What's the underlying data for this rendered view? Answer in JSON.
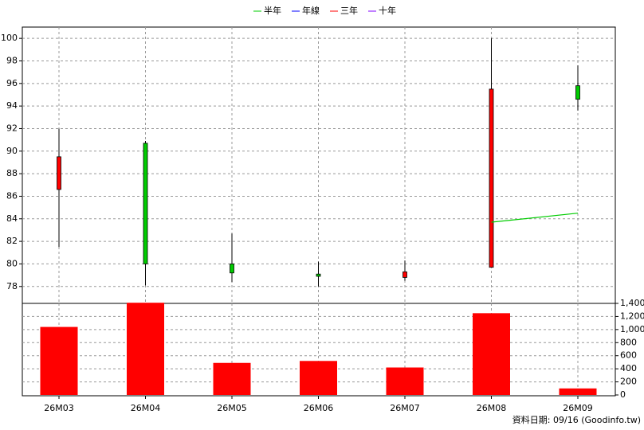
{
  "chart_data": [
    {
      "type": "candlestick",
      "open": [
        86.6,
        90.7,
        80.0,
        79.1,
        78.8,
        79.7,
        95.8
      ],
      "high": [
        92.0,
        90.9,
        82.7,
        80.2,
        80.3,
        100.0,
        97.6
      ],
      "low": [
        81.5,
        78.1,
        78.4,
        78.0,
        78.5,
        79.7,
        93.6
      ],
      "close": [
        89.5,
        80.0,
        79.2,
        78.9,
        79.3,
        95.5,
        94.6
      ],
      "up_color": "#ff0000",
      "down_color": "#00cc00",
      "series": [
        {
          "name": "半年",
          "color": "#00cc00",
          "values": [
            null,
            null,
            null,
            null,
            null,
            83.7,
            84.5
          ]
        },
        {
          "name": "年線",
          "color": "#0000ff",
          "values": [
            null,
            null,
            null,
            null,
            null,
            null,
            null
          ]
        },
        {
          "name": "三年",
          "color": "#ff0000",
          "values": [
            null,
            null,
            null,
            null,
            null,
            null,
            null
          ]
        },
        {
          "name": "十年",
          "color": "#8000ff",
          "values": [
            null,
            null,
            null,
            null,
            null,
            null,
            null
          ]
        }
      ],
      "ylim": [
        76.5,
        101
      ],
      "yticks": [
        78,
        80,
        82,
        84,
        86,
        88,
        90,
        92,
        94,
        96,
        98,
        100
      ],
      "grid": true
    },
    {
      "type": "bar",
      "categories": [
        "26M03",
        "26M04",
        "26M05",
        "26M06",
        "26M07",
        "26M08",
        "26M09"
      ],
      "values": [
        1040,
        1410,
        490,
        520,
        420,
        1250,
        100
      ],
      "color": "#ff0000",
      "ylim": [
        0,
        1400
      ],
      "yticks": [
        0,
        200,
        400,
        600,
        800,
        {
          "value": 1000,
          "label": "1,000"
        },
        {
          "value": 1200,
          "label": "1,200"
        },
        {
          "value": 1400,
          "label": "1,400"
        }
      ],
      "grid": true
    }
  ],
  "footer": "資料日期: 09/16 (Goodinfo.tw)"
}
